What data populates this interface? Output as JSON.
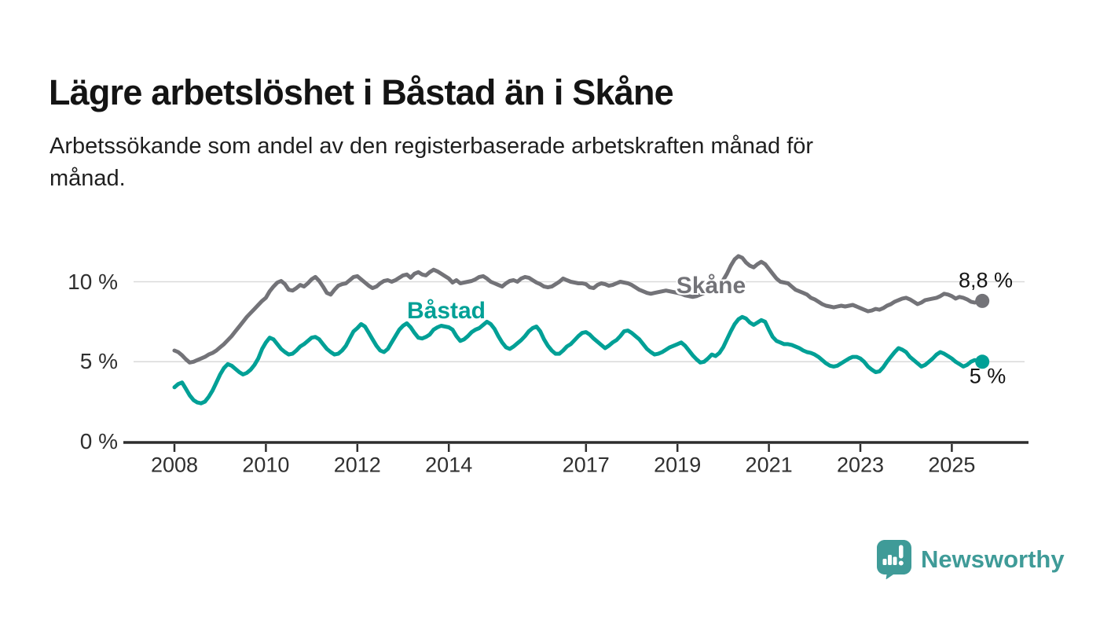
{
  "header": {
    "title": "Lägre arbetslöshet i Båstad än i Skåne",
    "subtitle_lines": [
      "Arbetssökande som andel av den registerbaserade arbetskraften månad för",
      "månad."
    ]
  },
  "chart_data": {
    "type": "line",
    "unit": "%",
    "frequency": "monthly",
    "x_start": "2008-01",
    "x_end": "2025-09",
    "ylim": [
      0,
      12.5
    ],
    "grid": "horizontal",
    "legend_position": "inline-labels",
    "y_ticks": [
      {
        "value": 10,
        "label": "10 %"
      },
      {
        "value": 5,
        "label": "5 %"
      },
      {
        "value": 0,
        "label": "0 %"
      }
    ],
    "x_ticks": [
      {
        "value": 2008,
        "label": "2008"
      },
      {
        "value": 2010,
        "label": "2010"
      },
      {
        "value": 2012,
        "label": "2012"
      },
      {
        "value": 2014,
        "label": "2014"
      },
      {
        "value": 2017,
        "label": "2017"
      },
      {
        "value": 2019,
        "label": "2019"
      },
      {
        "value": 2021,
        "label": "2021"
      },
      {
        "value": 2023,
        "label": "2023"
      },
      {
        "value": 2025,
        "label": "2025"
      }
    ],
    "series": [
      {
        "name": "Skåne",
        "color": "#737378",
        "end_value_label": "8,8 %",
        "last_value": 8.8,
        "values": [
          5.7,
          5.6,
          5.4,
          5.15,
          4.95,
          5.0,
          5.1,
          5.2,
          5.3,
          5.45,
          5.55,
          5.7,
          5.9,
          6.1,
          6.35,
          6.6,
          6.9,
          7.2,
          7.5,
          7.8,
          8.05,
          8.3,
          8.55,
          8.8,
          9.0,
          9.4,
          9.7,
          9.95,
          10.05,
          9.85,
          9.5,
          9.45,
          9.6,
          9.8,
          9.7,
          9.9,
          10.15,
          10.3,
          10.05,
          9.7,
          9.3,
          9.2,
          9.5,
          9.75,
          9.85,
          9.9,
          10.1,
          10.3,
          10.35,
          10.15,
          9.95,
          9.75,
          9.6,
          9.7,
          9.9,
          10.05,
          10.1,
          10.0,
          10.1,
          10.25,
          10.4,
          10.45,
          10.25,
          10.5,
          10.6,
          10.45,
          10.4,
          10.6,
          10.75,
          10.65,
          10.5,
          10.35,
          10.2,
          9.95,
          10.1,
          9.9,
          9.95,
          10.0,
          10.05,
          10.15,
          10.3,
          10.35,
          10.2,
          10.0,
          9.9,
          9.8,
          9.7,
          9.9,
          10.05,
          10.1,
          10.0,
          10.2,
          10.3,
          10.25,
          10.1,
          9.95,
          9.85,
          9.7,
          9.65,
          9.7,
          9.85,
          10.0,
          10.2,
          10.1,
          10.0,
          9.95,
          9.9,
          9.9,
          9.85,
          9.65,
          9.6,
          9.8,
          9.9,
          9.85,
          9.75,
          9.8,
          9.9,
          10.0,
          9.95,
          9.9,
          9.8,
          9.65,
          9.5,
          9.4,
          9.3,
          9.25,
          9.3,
          9.35,
          9.4,
          9.45,
          9.4,
          9.35,
          9.3,
          9.25,
          9.15,
          9.1,
          9.05,
          9.1,
          9.2,
          9.3,
          9.4,
          9.55,
          9.7,
          9.9,
          10.1,
          10.5,
          11.0,
          11.4,
          11.6,
          11.5,
          11.2,
          11.0,
          10.9,
          11.1,
          11.25,
          11.1,
          10.8,
          10.5,
          10.2,
          10.0,
          9.95,
          9.9,
          9.7,
          9.5,
          9.4,
          9.3,
          9.2,
          9.0,
          8.9,
          8.75,
          8.6,
          8.5,
          8.45,
          8.4,
          8.45,
          8.5,
          8.45,
          8.5,
          8.55,
          8.45,
          8.35,
          8.25,
          8.15,
          8.2,
          8.3,
          8.25,
          8.35,
          8.5,
          8.6,
          8.75,
          8.85,
          8.95,
          9.0,
          8.9,
          8.75,
          8.6,
          8.7,
          8.85,
          8.9,
          8.95,
          9.0,
          9.1,
          9.25,
          9.2,
          9.1,
          8.95,
          9.05,
          9.0,
          8.9,
          8.75,
          8.7,
          8.75,
          8.8
        ]
      },
      {
        "name": "Båstad",
        "color": "#00A096",
        "end_value_label": "5 %",
        "last_value": 5,
        "values": [
          3.4,
          3.6,
          3.7,
          3.3,
          2.9,
          2.6,
          2.45,
          2.4,
          2.5,
          2.8,
          3.2,
          3.7,
          4.2,
          4.6,
          4.85,
          4.75,
          4.55,
          4.35,
          4.2,
          4.3,
          4.5,
          4.8,
          5.2,
          5.8,
          6.2,
          6.5,
          6.4,
          6.1,
          5.8,
          5.6,
          5.45,
          5.5,
          5.7,
          5.95,
          6.1,
          6.3,
          6.5,
          6.55,
          6.4,
          6.1,
          5.8,
          5.6,
          5.45,
          5.5,
          5.7,
          6.0,
          6.45,
          6.9,
          7.1,
          7.35,
          7.2,
          6.8,
          6.4,
          6.0,
          5.7,
          5.6,
          5.8,
          6.2,
          6.6,
          7.0,
          7.25,
          7.4,
          7.15,
          6.8,
          6.5,
          6.45,
          6.55,
          6.7,
          7.0,
          7.15,
          7.25,
          7.2,
          7.15,
          7.0,
          6.6,
          6.3,
          6.4,
          6.6,
          6.85,
          7.0,
          7.1,
          7.3,
          7.5,
          7.35,
          7.05,
          6.6,
          6.2,
          5.9,
          5.8,
          5.95,
          6.15,
          6.35,
          6.6,
          6.9,
          7.1,
          7.2,
          6.9,
          6.4,
          6.0,
          5.7,
          5.5,
          5.5,
          5.7,
          5.95,
          6.1,
          6.35,
          6.6,
          6.8,
          6.85,
          6.7,
          6.45,
          6.25,
          6.05,
          5.85,
          6.0,
          6.2,
          6.35,
          6.6,
          6.9,
          6.95,
          6.8,
          6.6,
          6.4,
          6.1,
          5.8,
          5.6,
          5.45,
          5.5,
          5.6,
          5.75,
          5.9,
          6.0,
          6.1,
          6.2,
          6.0,
          5.7,
          5.4,
          5.15,
          4.95,
          5.0,
          5.2,
          5.45,
          5.35,
          5.55,
          5.9,
          6.4,
          6.9,
          7.35,
          7.65,
          7.8,
          7.7,
          7.45,
          7.3,
          7.45,
          7.6,
          7.5,
          7.0,
          6.55,
          6.3,
          6.2,
          6.1,
          6.1,
          6.05,
          5.95,
          5.85,
          5.7,
          5.6,
          5.55,
          5.45,
          5.3,
          5.1,
          4.9,
          4.75,
          4.7,
          4.75,
          4.9,
          5.05,
          5.2,
          5.3,
          5.3,
          5.2,
          5.0,
          4.7,
          4.5,
          4.35,
          4.4,
          4.65,
          5.0,
          5.3,
          5.6,
          5.85,
          5.75,
          5.6,
          5.3,
          5.1,
          4.9,
          4.7,
          4.8,
          5.0,
          5.2,
          5.45,
          5.6,
          5.5,
          5.35,
          5.2,
          5.0,
          4.85,
          4.7,
          4.8,
          5.0,
          5.1,
          5.05,
          5.0
        ]
      }
    ]
  },
  "footer": {
    "brand": "Newsworthy",
    "brand_color": "#3F9B98"
  }
}
